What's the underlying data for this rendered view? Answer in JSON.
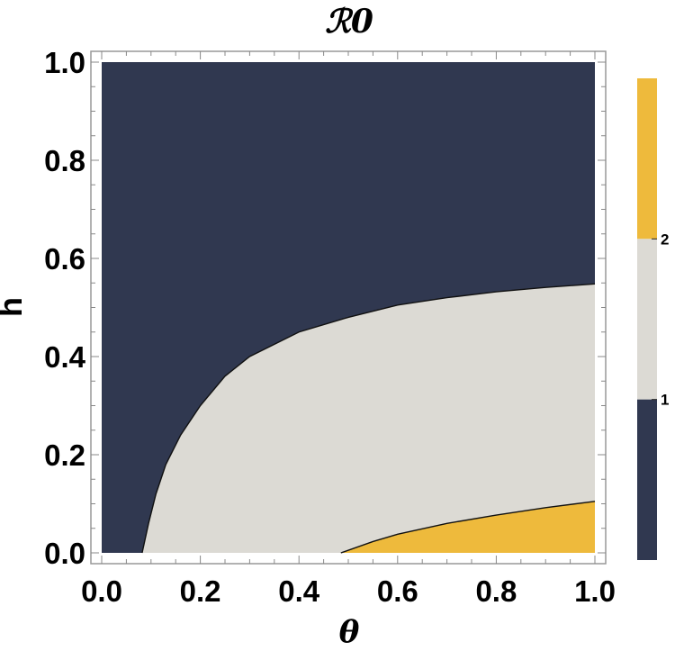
{
  "chart_data": {
    "type": "contour",
    "title": "ℛ0",
    "xlabel": "θ",
    "ylabel": "h",
    "xlim": [
      0,
      1
    ],
    "ylim": [
      0,
      1
    ],
    "x_ticks": [
      "0.0",
      "0.2",
      "0.4",
      "0.6",
      "0.8",
      "1.0"
    ],
    "y_ticks": [
      "0.0",
      "0.2",
      "0.4",
      "0.6",
      "0.8",
      "1.0"
    ],
    "contour_levels": [
      1,
      2
    ],
    "regions": [
      {
        "range": "below 1",
        "color": "#303850"
      },
      {
        "range": "1 to 2",
        "color": "#dcdad4"
      },
      {
        "range": "above 2",
        "color": "#eeba3c"
      }
    ],
    "contours": [
      {
        "level": 1,
        "points": [
          [
            0.082,
            0.0
          ],
          [
            0.095,
            0.06
          ],
          [
            0.11,
            0.12
          ],
          [
            0.13,
            0.18
          ],
          [
            0.16,
            0.24
          ],
          [
            0.2,
            0.3
          ],
          [
            0.25,
            0.36
          ],
          [
            0.3,
            0.4
          ],
          [
            0.4,
            0.45
          ],
          [
            0.5,
            0.48
          ],
          [
            0.6,
            0.505
          ],
          [
            0.7,
            0.52
          ],
          [
            0.8,
            0.532
          ],
          [
            0.9,
            0.541
          ],
          [
            1.0,
            0.548
          ]
        ]
      },
      {
        "level": 2,
        "points": [
          [
            0.485,
            0.0
          ],
          [
            0.55,
            0.023
          ],
          [
            0.6,
            0.038
          ],
          [
            0.7,
            0.06
          ],
          [
            0.8,
            0.077
          ],
          [
            0.9,
            0.092
          ],
          [
            1.0,
            0.105
          ]
        ]
      }
    ],
    "colorbar": {
      "ticks": [
        "1",
        "2"
      ]
    }
  }
}
